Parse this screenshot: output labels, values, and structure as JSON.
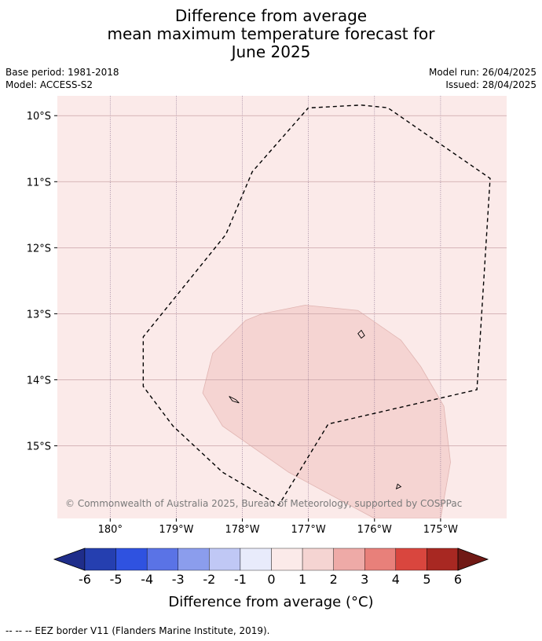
{
  "header": {
    "title_line1": "Difference from average",
    "title_line2": "mean maximum temperature forecast for",
    "title_line3": "June 2025",
    "base_period": "Base period: 1981-2018",
    "model": "Model: ACCESS-S2",
    "model_run": "Model run: 26/04/2025",
    "issued": "Issued: 28/04/2025"
  },
  "chart_data": {
    "type": "heatmap",
    "title": "Difference from average mean maximum temperature forecast for June 2025",
    "x_ticks": [
      "180°",
      "179°W",
      "178°W",
      "177°W",
      "176°W",
      "175°W"
    ],
    "x_tick_values": [
      180,
      -179,
      -178,
      -177,
      -176,
      -175
    ],
    "y_ticks": [
      "10°S",
      "11°S",
      "12°S",
      "13°S",
      "14°S",
      "15°S"
    ],
    "y_tick_values": [
      -10,
      -11,
      -12,
      -13,
      -14,
      -15
    ],
    "xlim": [
      179.2,
      -174.0
    ],
    "ylim": [
      -16.1,
      -9.7
    ],
    "grid": true,
    "background_value_range": [
      0,
      1
    ],
    "anomaly_regions": [
      {
        "value_range": [
          1,
          2
        ],
        "outline": [
          [
            -177.05,
            -12.87
          ],
          [
            -176.25,
            -12.95
          ],
          [
            -175.6,
            -13.4
          ],
          [
            -175.3,
            -13.8
          ],
          [
            -174.95,
            -14.4
          ],
          [
            -174.85,
            -15.25
          ],
          [
            -175.0,
            -16.1
          ],
          [
            -176.0,
            -16.1
          ],
          [
            -177.3,
            -15.4
          ],
          [
            -178.3,
            -14.7
          ],
          [
            -178.6,
            -14.2
          ],
          [
            -178.45,
            -13.6
          ],
          [
            -177.95,
            -13.1
          ],
          [
            -177.7,
            -13.0
          ]
        ]
      }
    ],
    "eez_border": [
      [
        -176.95,
        -9.88
      ],
      [
        -176.2,
        -9.84
      ],
      [
        -175.8,
        -9.88
      ],
      [
        -174.25,
        -10.95
      ],
      [
        -174.45,
        -14.15
      ],
      [
        -176.7,
        -14.67
      ],
      [
        -177.45,
        -15.9
      ],
      [
        -178.3,
        -15.4
      ],
      [
        -179.05,
        -14.7
      ],
      [
        -179.5,
        -14.1
      ],
      [
        -179.5,
        -13.35
      ],
      [
        -178.25,
        -11.8
      ],
      [
        -177.85,
        -10.85
      ],
      [
        -177.0,
        -9.88
      ]
    ],
    "islands": [
      [
        [
          -176.2,
          -13.25
        ],
        [
          -176.15,
          -13.33
        ],
        [
          -176.2,
          -13.37
        ],
        [
          -176.25,
          -13.3
        ]
      ],
      [
        [
          -178.2,
          -14.25
        ],
        [
          -178.1,
          -14.3
        ],
        [
          -178.05,
          -14.35
        ],
        [
          -178.15,
          -14.32
        ]
      ],
      [
        [
          -175.65,
          -15.58
        ],
        [
          -175.6,
          -15.62
        ],
        [
          -175.67,
          -15.65
        ]
      ]
    ],
    "colorbar": {
      "ticks": [
        "-6",
        "-5",
        "-4",
        "-3",
        "-2",
        "-1",
        "0",
        "1",
        "2",
        "3",
        "4",
        "5",
        "6"
      ],
      "colors": [
        "#1f2d8a",
        "#253fb0",
        "#2f52e0",
        "#5a73e6",
        "#8b9ded",
        "#c0c8f5",
        "#e8ebfb",
        "#fbeae9",
        "#f5d4d2",
        "#eeaaa7",
        "#e8807a",
        "#d9463e",
        "#a82822",
        "#701915"
      ],
      "label": "Difference from average (°C)"
    },
    "copyright": "© Commonwealth of Australia 2025, Bureau of Meteorology, supported by COSPPac"
  },
  "footnote": "--  --  -- EEZ border V11 (Flanders Marine Institute, 2019)."
}
